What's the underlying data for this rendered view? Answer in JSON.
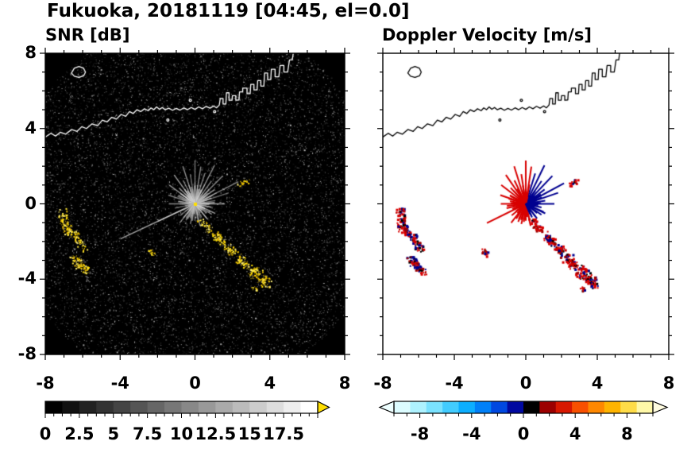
{
  "title": "Fukuoka, 20181119 [04:45, el=0.0]",
  "panels": [
    {
      "title": "SNR [dB]"
    },
    {
      "title": "Doppler Velocity [m/s]"
    }
  ],
  "chart_data": [
    {
      "type": "heatmap",
      "title": "SNR [dB]",
      "xlabel": "",
      "ylabel": "",
      "xlim": [
        -8,
        8
      ],
      "ylim": [
        -8,
        8
      ],
      "xticks": [
        -8,
        -4,
        0,
        4,
        8
      ],
      "yticks": [
        8,
        4,
        0,
        -4,
        -8
      ],
      "minor_tick_step": 1,
      "background_color": "#000000",
      "coast_color": "#ffffff",
      "colorbar": {
        "range": [
          0,
          20
        ],
        "tick_labels": [
          0,
          2.5,
          5,
          7.5,
          10,
          12.5,
          15,
          17.5
        ],
        "minor_tick_step": 0.625,
        "style": "grayscale",
        "over_arrow_color": "#ffdf00"
      }
    },
    {
      "type": "heatmap",
      "title": "Doppler Velocity [m/s]",
      "xlabel": "",
      "ylabel": "",
      "xlim": [
        -8,
        8
      ],
      "ylim": [
        -8,
        8
      ],
      "xticks": [
        -8,
        -4,
        0,
        4,
        8
      ],
      "yticks": [
        8,
        4,
        0,
        -4,
        -8
      ],
      "minor_tick_step": 1,
      "background_color": "#ffffff",
      "coast_color": "#000000",
      "colorbar": {
        "range": [
          -10,
          10
        ],
        "tick_labels": [
          -8,
          -4,
          0,
          4,
          8
        ],
        "minor_tick_step": 1,
        "segments": [
          "#dcfcff",
          "#aef2ff",
          "#7ae2ff",
          "#42ccff",
          "#0caeff",
          "#0080f8",
          "#0048e0",
          "#0008a0",
          "#000000",
          "#9c0000",
          "#d81800",
          "#f85000",
          "#ff8800",
          "#ffb400",
          "#ffdc48",
          "#fff8a8"
        ],
        "under_arrow_color": "#eeffff",
        "over_arrow_color": "#fffce0"
      }
    }
  ],
  "features": {
    "radar_center": [
      0,
      0
    ],
    "rays": [
      [
        0,
        1.6
      ],
      [
        9,
        1.1
      ],
      [
        18,
        1.9
      ],
      [
        27,
        2.6
      ],
      [
        36,
        1.3
      ],
      [
        45,
        2.1
      ],
      [
        54,
        1.5
      ],
      [
        63,
        2.3
      ],
      [
        72,
        1.7
      ],
      [
        81,
        2.0
      ],
      [
        90,
        2.3
      ],
      [
        99,
        1.6
      ],
      [
        108,
        2.1
      ],
      [
        117,
        1.4
      ],
      [
        126,
        1.9
      ],
      [
        135,
        1.2
      ],
      [
        144,
        1.7
      ],
      [
        153,
        1.0
      ],
      [
        162,
        1.5
      ],
      [
        171,
        0.9
      ],
      [
        180,
        1.4
      ],
      [
        192,
        1.1
      ],
      [
        205,
        4.4
      ],
      [
        218,
        1.0
      ],
      [
        231,
        1.3
      ],
      [
        244,
        0.9
      ],
      [
        257,
        1.1
      ],
      [
        270,
        0.9
      ],
      [
        283,
        1.2
      ],
      [
        296,
        0.8
      ],
      [
        309,
        1.0
      ],
      [
        322,
        0.8
      ],
      [
        335,
        1.2
      ],
      [
        348,
        0.9
      ]
    ],
    "echoes": [
      {
        "p1": [
          -7.1,
          -0.35
        ],
        "p2": [
          -6.9,
          -1.3
        ],
        "w": 0.25,
        "n": 70
      },
      {
        "p1": [
          -6.9,
          -1.3
        ],
        "p2": [
          -6.3,
          -1.75
        ],
        "w": 0.22,
        "n": 50
      },
      {
        "p1": [
          -6.35,
          -1.8
        ],
        "p2": [
          -5.85,
          -2.4
        ],
        "w": 0.2,
        "n": 40
      },
      {
        "p1": [
          -6.55,
          -2.85
        ],
        "p2": [
          -6.15,
          -3.3
        ],
        "w": 0.22,
        "n": 45
      },
      {
        "p1": [
          -6.15,
          -3.3
        ],
        "p2": [
          -5.7,
          -3.6
        ],
        "w": 0.2,
        "n": 35
      },
      {
        "p1": [
          -2.45,
          -2.45
        ],
        "p2": [
          -2.15,
          -2.7
        ],
        "w": 0.12,
        "n": 16
      },
      {
        "p1": [
          0.25,
          -0.85
        ],
        "p2": [
          0.85,
          -1.45
        ],
        "w": 0.18,
        "n": 45
      },
      {
        "p1": [
          1.0,
          -1.6
        ],
        "p2": [
          1.5,
          -2.05
        ],
        "w": 0.2,
        "n": 50
      },
      {
        "p1": [
          1.65,
          -2.2
        ],
        "p2": [
          2.1,
          -2.6
        ],
        "w": 0.22,
        "n": 50
      },
      {
        "p1": [
          2.25,
          -2.8
        ],
        "p2": [
          2.7,
          -3.2
        ],
        "w": 0.25,
        "n": 55
      },
      {
        "p1": [
          2.85,
          -3.35
        ],
        "p2": [
          3.35,
          -3.8
        ],
        "w": 0.28,
        "n": 60
      },
      {
        "p1": [
          3.45,
          -3.9
        ],
        "p2": [
          3.85,
          -4.25
        ],
        "w": 0.25,
        "n": 50
      },
      {
        "p1": [
          2.35,
          1.05
        ],
        "p2": [
          2.85,
          1.25
        ],
        "w": 0.12,
        "n": 18
      },
      {
        "p1": [
          3.05,
          -4.45
        ],
        "p2": [
          3.3,
          -4.6
        ],
        "w": 0.1,
        "n": 10
      }
    ],
    "snr_echo_colors": [
      "#ffdf00",
      "#ffe93c",
      "#f2c800",
      "#fff07a",
      "#e0b400"
    ],
    "vel_colors": {
      "away": "#d80000",
      "dark_red": "#9c0000",
      "toward": "#000090",
      "black": "#000000"
    },
    "coastline": [
      [
        -8,
        3.55
      ],
      [
        -7.7,
        3.75
      ],
      [
        -7.45,
        3.6
      ],
      [
        -7.2,
        3.8
      ],
      [
        -6.9,
        3.7
      ],
      [
        -6.6,
        3.95
      ],
      [
        -6.3,
        3.85
      ],
      [
        -6.05,
        4.1
      ],
      [
        -5.8,
        4.0
      ],
      [
        -5.5,
        4.25
      ],
      [
        -5.2,
        4.15
      ],
      [
        -4.95,
        4.45
      ],
      [
        -4.7,
        4.35
      ],
      [
        -4.45,
        4.6
      ],
      [
        -4.2,
        4.5
      ],
      [
        -3.95,
        4.75
      ],
      [
        -3.7,
        4.65
      ],
      [
        -3.5,
        4.9
      ],
      [
        -3.3,
        4.8
      ],
      [
        -3.1,
        5.0
      ],
      [
        -2.9,
        4.9
      ],
      [
        -2.7,
        5.05
      ],
      [
        -2.5,
        4.95
      ],
      [
        -2.35,
        5.1
      ],
      [
        -2.2,
        5.0
      ],
      [
        -2.05,
        5.15
      ],
      [
        -1.9,
        5.02
      ],
      [
        -1.75,
        5.12
      ],
      [
        -1.6,
        5.0
      ],
      [
        -1.4,
        5.08
      ],
      [
        -1.2,
        4.97
      ],
      [
        -1.0,
        5.07
      ],
      [
        -0.8,
        4.98
      ],
      [
        -0.6,
        5.1
      ],
      [
        -0.4,
        5.0
      ],
      [
        -0.2,
        5.12
      ],
      [
        0.0,
        5.02
      ],
      [
        0.2,
        5.15
      ],
      [
        0.4,
        5.05
      ],
      [
        0.6,
        5.18
      ],
      [
        0.8,
        5.08
      ],
      [
        1.0,
        5.2
      ],
      [
        1.15,
        5.1
      ],
      [
        1.3,
        5.25
      ],
      [
        1.35,
        5.6
      ],
      [
        1.5,
        5.6
      ],
      [
        1.5,
        5.3
      ],
      [
        1.65,
        5.3
      ],
      [
        1.68,
        5.9
      ],
      [
        1.82,
        5.9
      ],
      [
        1.82,
        5.5
      ],
      [
        1.98,
        5.5
      ],
      [
        2.0,
        5.75
      ],
      [
        2.18,
        5.75
      ],
      [
        2.18,
        5.5
      ],
      [
        2.35,
        5.52
      ],
      [
        2.38,
        5.95
      ],
      [
        2.55,
        5.95
      ],
      [
        2.55,
        6.15
      ],
      [
        2.78,
        6.15
      ],
      [
        2.78,
        5.85
      ],
      [
        2.95,
        5.85
      ],
      [
        2.98,
        6.35
      ],
      [
        3.15,
        6.35
      ],
      [
        3.15,
        6.05
      ],
      [
        3.32,
        6.05
      ],
      [
        3.35,
        6.55
      ],
      [
        3.52,
        6.55
      ],
      [
        3.52,
        6.25
      ],
      [
        3.68,
        6.25
      ],
      [
        3.72,
        6.95
      ],
      [
        3.88,
        6.95
      ],
      [
        3.88,
        6.6
      ],
      [
        4.05,
        6.6
      ],
      [
        4.08,
        7.15
      ],
      [
        4.28,
        7.15
      ],
      [
        4.28,
        6.75
      ],
      [
        4.48,
        6.75
      ],
      [
        4.55,
        7.35
      ],
      [
        4.75,
        7.35
      ],
      [
        4.75,
        7.0
      ],
      [
        4.95,
        7.0
      ],
      [
        5.05,
        7.65
      ],
      [
        5.2,
        7.65
      ],
      [
        5.25,
        8.0
      ]
    ],
    "island": [
      [
        -6.6,
        6.95
      ],
      [
        -6.45,
        7.2
      ],
      [
        -6.2,
        7.3
      ],
      [
        -5.95,
        7.2
      ],
      [
        -5.85,
        7.0
      ],
      [
        -5.95,
        6.8
      ],
      [
        -6.2,
        6.72
      ],
      [
        -6.45,
        6.78
      ]
    ],
    "islets": [
      [
        -1.45,
        4.45
      ],
      [
        -0.25,
        5.5
      ],
      [
        1.05,
        4.9
      ]
    ]
  }
}
